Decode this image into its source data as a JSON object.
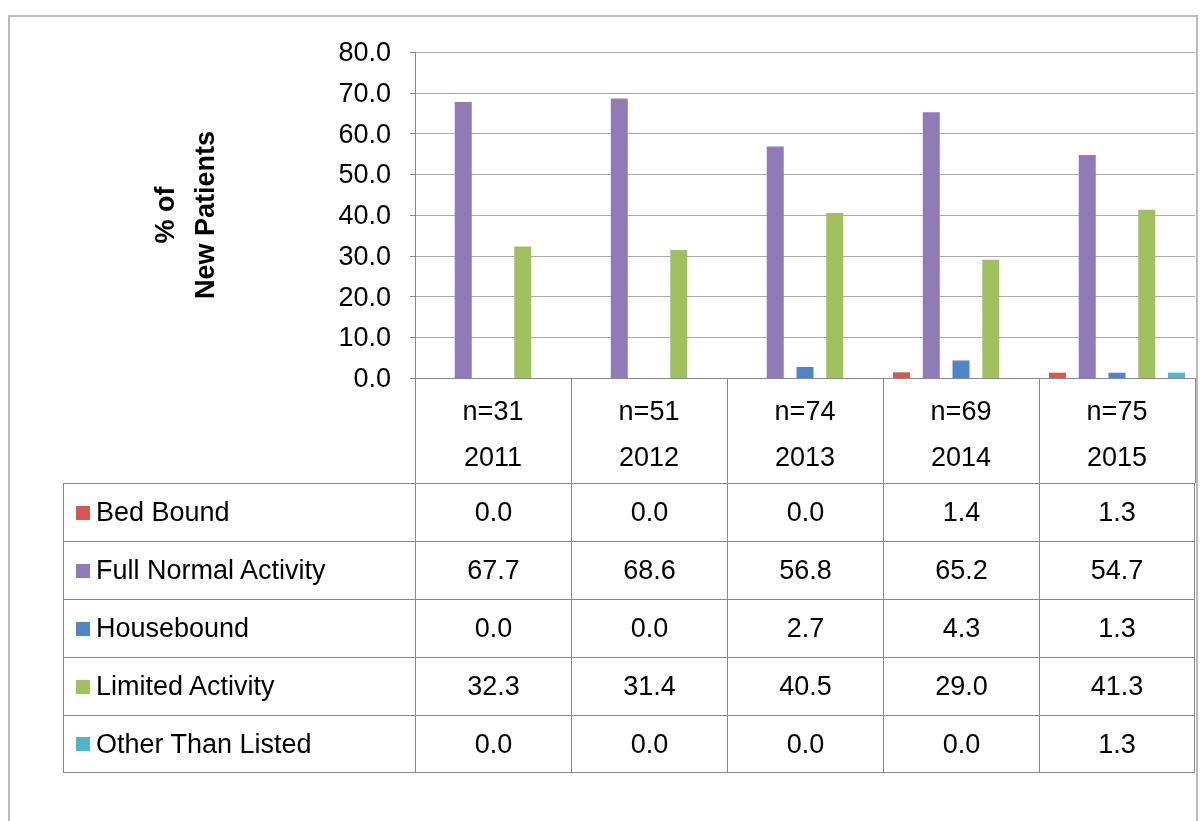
{
  "chart_data": {
    "type": "bar",
    "ylabel": "% of\nNew Patients",
    "categories": [
      "n=31\n2011",
      "n=51\n2012",
      "n=74\n2013",
      "n=69\n2014",
      "n=75\n2015"
    ],
    "series": [
      {
        "name": "Bed Bound",
        "color": "#d5574f",
        "values": [
          0,
          0,
          0,
          1.4,
          1.3
        ],
        "value_labels": [
          "0.0",
          "0.0",
          "0.0",
          "1.4",
          "1.3"
        ]
      },
      {
        "name": "Full Normal Activity",
        "color": "#8f7bb5",
        "values": [
          67.7,
          68.6,
          56.8,
          65.2,
          54.7
        ],
        "value_labels": [
          "67.7",
          "68.6",
          "56.8",
          "65.2",
          "54.7"
        ]
      },
      {
        "name": "Housebound",
        "color": "#4f85c4",
        "values": [
          0,
          0,
          2.7,
          4.3,
          1.3
        ],
        "value_labels": [
          "0.0",
          "0.0",
          "2.7",
          "4.3",
          "1.3"
        ]
      },
      {
        "name": "Limited Activity",
        "color": "#a0c060",
        "values": [
          32.3,
          31.4,
          40.5,
          29.0,
          41.3
        ],
        "value_labels": [
          "32.3",
          "31.4",
          "40.5",
          "29.0",
          "41.3"
        ]
      },
      {
        "name": "Other Than Listed",
        "color": "#4fb4cc",
        "values": [
          0,
          0,
          0,
          0,
          1.3
        ],
        "value_labels": [
          "0.0",
          "0.0",
          "0.0",
          "0.0",
          "1.3"
        ]
      }
    ],
    "ylim": [
      0,
      80
    ],
    "yticks": [
      {
        "value": 0,
        "label": "0.0"
      },
      {
        "value": 10,
        "label": "10.0"
      },
      {
        "value": 20,
        "label": "20.0"
      },
      {
        "value": 30,
        "label": "30.0"
      },
      {
        "value": 40,
        "label": "40.0"
      },
      {
        "value": 50,
        "label": "50.0"
      },
      {
        "value": 60,
        "label": "60.0"
      },
      {
        "value": 70,
        "label": "70.0"
      },
      {
        "value": 80,
        "label": "80.0"
      }
    ],
    "grid": "y",
    "legend": "bottom"
  }
}
